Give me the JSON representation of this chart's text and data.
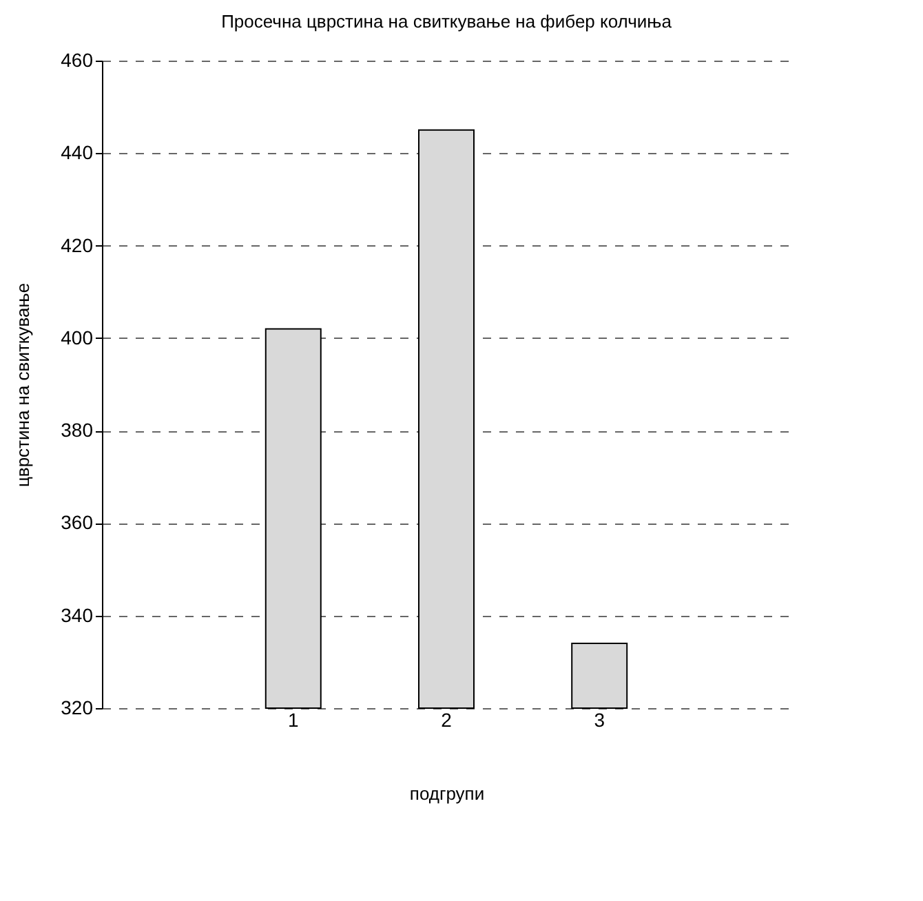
{
  "chart_data": {
    "type": "bar",
    "title": "Просечна цврстина на свиткување на фибер колчиња",
    "xlabel": "подгрупи",
    "ylabel": "цврстина на свиткување",
    "categories": [
      "1",
      "2",
      "3"
    ],
    "values": [
      402,
      445,
      334
    ],
    "color": "#d9d9d9",
    "ylim": [
      320,
      460
    ],
    "yticks": [
      320,
      340,
      360,
      380,
      400,
      420,
      440,
      460
    ],
    "grid": "y",
    "line_style": "dashed"
  }
}
